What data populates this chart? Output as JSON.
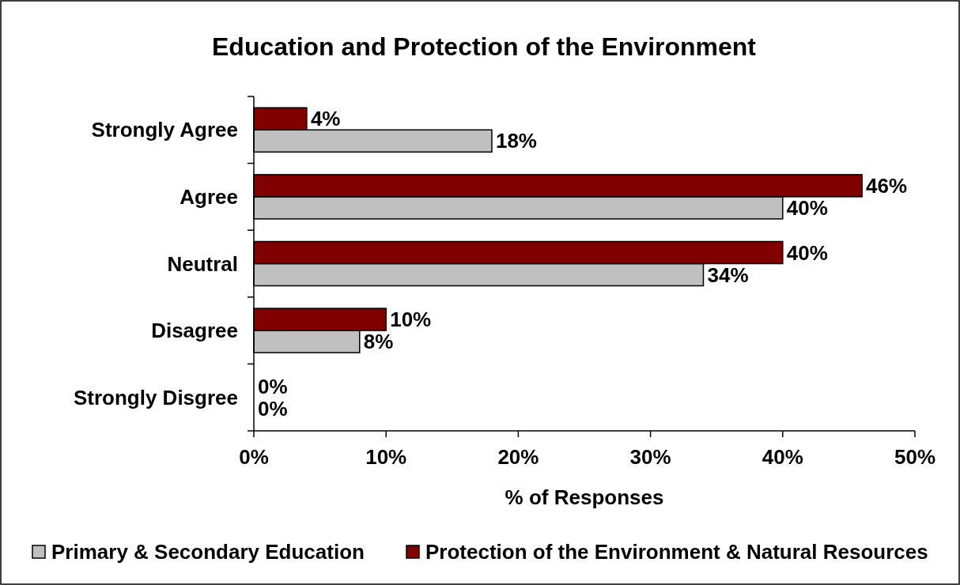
{
  "chart_data": {
    "type": "bar",
    "orientation": "horizontal",
    "title": "Education and Protection of the Environment",
    "xlabel": "% of Responses",
    "categories": [
      "Strongly Agree",
      "Agree",
      "Neutral",
      "Disagree",
      "Strongly Disgree"
    ],
    "series": [
      {
        "name": "Primary & Secondary Education",
        "color": "#c0c0c0",
        "values": [
          18,
          40,
          34,
          8,
          0
        ],
        "value_labels": [
          "18%",
          "40%",
          "34%",
          "8%",
          "0%"
        ]
      },
      {
        "name": "Protection of the Environment & Natural Resources",
        "color": "#800000",
        "values": [
          4,
          46,
          40,
          10,
          0
        ],
        "value_labels": [
          "4%",
          "46%",
          "40%",
          "10%",
          "0%"
        ]
      }
    ],
    "xlim": [
      0,
      50
    ],
    "xticks": [
      {
        "value": 0,
        "label": "0%"
      },
      {
        "value": 10,
        "label": "10%"
      },
      {
        "value": 20,
        "label": "20%"
      },
      {
        "value": 30,
        "label": "30%"
      },
      {
        "value": 40,
        "label": "40%"
      },
      {
        "value": 50,
        "label": "50%"
      }
    ],
    "grid": false,
    "legend": "bottom"
  }
}
